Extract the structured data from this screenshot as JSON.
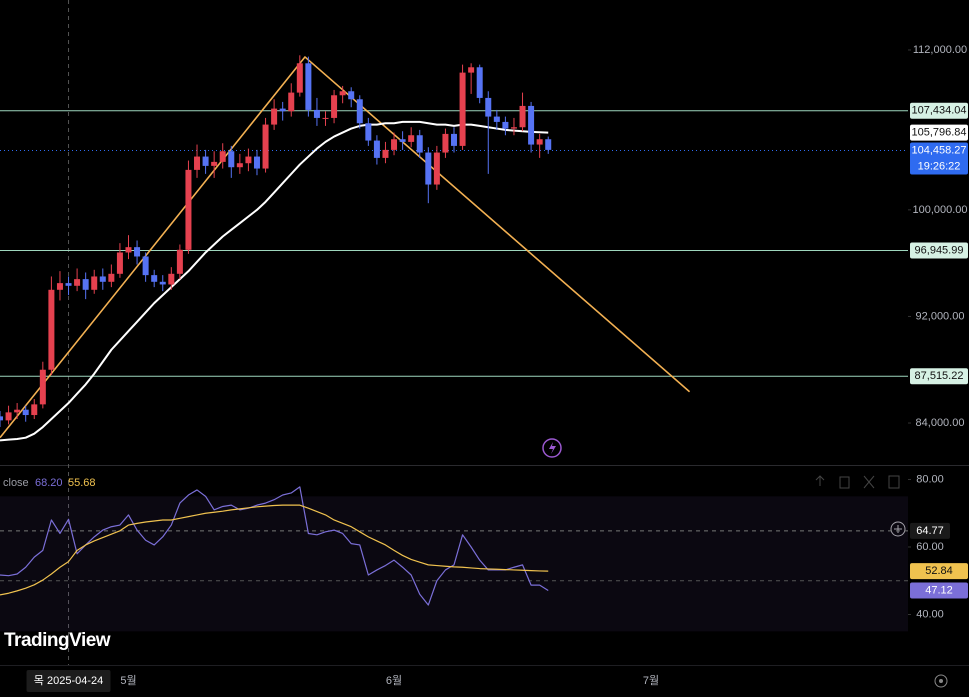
{
  "brand": "TradingView",
  "chart_data": [
    {
      "type": "candlestick",
      "x": [
        0,
        1,
        2,
        3,
        4,
        5,
        6,
        7,
        8,
        9,
        10,
        11,
        12,
        13,
        14,
        15,
        16,
        17,
        18,
        19,
        20,
        21,
        22,
        23,
        24,
        25,
        26,
        27,
        28,
        29,
        30,
        31,
        32,
        33,
        34,
        35,
        36,
        37,
        38,
        39,
        40,
        41,
        42,
        43,
        44,
        45,
        46,
        47,
        48,
        49,
        50,
        51,
        52,
        53,
        54,
        55,
        56,
        57,
        58,
        59,
        60,
        61,
        62,
        63,
        64
      ],
      "open": [
        84500,
        84200,
        84800,
        85000,
        84600,
        85400,
        88000,
        94000,
        94500,
        94300,
        94800,
        94000,
        95000,
        94600,
        95200,
        96800,
        97200,
        96500,
        95100,
        94600,
        94400,
        95200,
        97000,
        103000,
        104000,
        103300,
        103600,
        104400,
        103200,
        103500,
        104000,
        103100,
        106400,
        107600,
        107400,
        108800,
        111000,
        107500,
        106900,
        106900,
        108600,
        108900,
        108300,
        106500,
        105200,
        103900,
        104500,
        105300,
        105100,
        105600,
        104300,
        101900,
        104300,
        105700,
        104800,
        110300,
        110700,
        108400,
        107000,
        106600,
        106100,
        106200,
        107800,
        104900,
        105300
      ],
      "high": [
        84900,
        85300,
        85500,
        85300,
        85800,
        88600,
        95000,
        95400,
        95000,
        95600,
        95300,
        95500,
        95600,
        95900,
        97500,
        98100,
        97700,
        96800,
        95500,
        95100,
        95700,
        97400,
        103700,
        104900,
        104500,
        104400,
        105000,
        104800,
        104200,
        104600,
        104500,
        106900,
        108300,
        108100,
        109500,
        111600,
        111500,
        108400,
        107400,
        109000,
        109300,
        109200,
        108600,
        106900,
        105600,
        105100,
        105800,
        105900,
        106200,
        106000,
        104700,
        104800,
        106100,
        106200,
        110900,
        111000,
        110900,
        108900,
        107500,
        107000,
        106900,
        108800,
        108100,
        105700,
        105500
      ],
      "low": [
        83700,
        83900,
        84300,
        84100,
        84300,
        85100,
        87600,
        93200,
        93600,
        93900,
        93300,
        93700,
        94000,
        94200,
        94900,
        96300,
        95900,
        94600,
        94200,
        93900,
        94000,
        94800,
        96700,
        102400,
        102700,
        102400,
        103100,
        102400,
        102700,
        102900,
        102600,
        102800,
        106000,
        106700,
        107000,
        108500,
        107000,
        106300,
        106300,
        106500,
        108000,
        107700,
        106100,
        104800,
        103400,
        103500,
        104100,
        104500,
        104700,
        103900,
        100500,
        101500,
        103900,
        104300,
        104500,
        108700,
        108000,
        102700,
        106000,
        105600,
        105600,
        105900,
        104300,
        103900,
        104200
      ],
      "close": [
        84200,
        84800,
        85000,
        84600,
        85400,
        88000,
        94000,
        94500,
        94300,
        94800,
        94000,
        95000,
        94600,
        95200,
        96800,
        97200,
        96500,
        95100,
        94600,
        94400,
        95200,
        97000,
        103000,
        104000,
        103300,
        103600,
        104400,
        103200,
        103500,
        104000,
        103100,
        106400,
        107600,
        107400,
        108800,
        111000,
        107500,
        106900,
        106900,
        108600,
        108900,
        108300,
        106500,
        105200,
        103900,
        104500,
        105300,
        105100,
        105600,
        104300,
        101900,
        104300,
        105700,
        104800,
        110300,
        110700,
        108400,
        107000,
        106600,
        106100,
        106200,
        107800,
        104900,
        105300,
        104500
      ],
      "up_color": "#e5414f",
      "down_color": "#5673f4",
      "ma": {
        "color": "#ffffff",
        "last_label": "105,796.84",
        "values": [
          82700,
          82750,
          82800,
          82900,
          83200,
          83700,
          84300,
          84900,
          85500,
          86200,
          86900,
          87700,
          88600,
          89500,
          90200,
          90900,
          91600,
          92300,
          93000,
          93600,
          94200,
          94800,
          95400,
          96100,
          96800,
          97400,
          98000,
          98500,
          99000,
          99500,
          100000,
          100600,
          101300,
          102000,
          102700,
          103400,
          104000,
          104600,
          105100,
          105500,
          105800,
          106100,
          106300,
          106400,
          106400,
          106500,
          106500,
          106600,
          106600,
          106600,
          106500,
          106400,
          106400,
          106300,
          106400,
          106400,
          106300,
          106200,
          106100,
          106000,
          105950,
          105900,
          105850,
          105820,
          105796.84
        ]
      },
      "trendline": {
        "color": "#f2b052",
        "x": [
          0,
          35.6,
          80.5
        ],
        "y": [
          82900,
          111475,
          86350
        ]
      },
      "hlines": [
        {
          "value": 107434.04,
          "label": "107,434.04"
        },
        {
          "value": 96945.99,
          "label": "96,945.99"
        },
        {
          "value": 87515.22,
          "label": "87,515.22"
        }
      ],
      "last_price": {
        "value": 104458.27,
        "label": "104,458.27",
        "time": "19:26:22",
        "color": "#2f6bf0"
      },
      "crosshair": {
        "x": 8,
        "label": "목 2025-04-24"
      },
      "xlim": [
        0,
        106
      ],
      "xticks": [
        {
          "value": 15,
          "label": "5월"
        },
        {
          "value": 46,
          "label": "6월"
        },
        {
          "value": 76,
          "label": "7월"
        }
      ],
      "ylim": [
        81000,
        115750
      ],
      "yticks": [
        {
          "value": 112000,
          "label": "112,000.00"
        },
        {
          "value": 100000,
          "label": "100,000.00"
        },
        {
          "value": 92000,
          "label": "92,000.00"
        },
        {
          "value": 84000,
          "label": "84,000.00"
        }
      ]
    },
    {
      "type": "line",
      "label": "close",
      "series": [
        {
          "color": "#7b6fd8",
          "last_label": "47.12",
          "crosshair_label": "68.20",
          "values": [
            51.7,
            51.5,
            52,
            54,
            57,
            59,
            68,
            64,
            68.2,
            58,
            60.6,
            63,
            65,
            66,
            66.5,
            69.5,
            65,
            62,
            60.6,
            63,
            66.5,
            73,
            75.4,
            76.9,
            75,
            71,
            72,
            72.4,
            71,
            71.5,
            72.4,
            73,
            74,
            75.4,
            76,
            77.8,
            64,
            63.6,
            64.5,
            65,
            64,
            61,
            60.6,
            51.7,
            53.2,
            54.5,
            56.1,
            54,
            51.7,
            46,
            42.8,
            50,
            53.2,
            54.7,
            63.6,
            60,
            56.1,
            53.2,
            53.2,
            53.2,
            54,
            54.7,
            48.7,
            48.7,
            47.12
          ]
        },
        {
          "color": "#f0c24f",
          "last_label": "52.84",
          "crosshair_label": "55.68",
          "values": [
            45.8,
            46.3,
            47,
            47.8,
            48.8,
            50.2,
            52,
            54,
            55.68,
            59,
            60.6,
            61.8,
            62.8,
            63.8,
            64.8,
            66.5,
            67,
            67.4,
            67.7,
            68,
            68,
            68.5,
            69,
            69.5,
            70,
            70.3,
            70.6,
            71,
            71.3,
            71.6,
            71.9,
            72.1,
            72.3,
            72.4,
            72.4,
            72.4,
            71.5,
            70.5,
            69.5,
            68,
            67,
            66,
            64.5,
            63,
            61.8,
            60.6,
            59,
            57.5,
            56.3,
            55.5,
            54.7,
            54.5,
            54.3,
            54.1,
            54,
            53.8,
            53.6,
            53.5,
            53.4,
            53.3,
            53.2,
            53.1,
            53,
            52.9,
            52.84
          ]
        }
      ],
      "band": [
        75,
        35
      ],
      "midline": 50,
      "crosshair_y": 64.77,
      "ylim": [
        28,
        83.4
      ],
      "yticks": [
        {
          "value": 80,
          "label": "80.00"
        },
        {
          "value": 60,
          "label": "60.00"
        },
        {
          "value": 40,
          "label": "40.00"
        }
      ]
    }
  ]
}
